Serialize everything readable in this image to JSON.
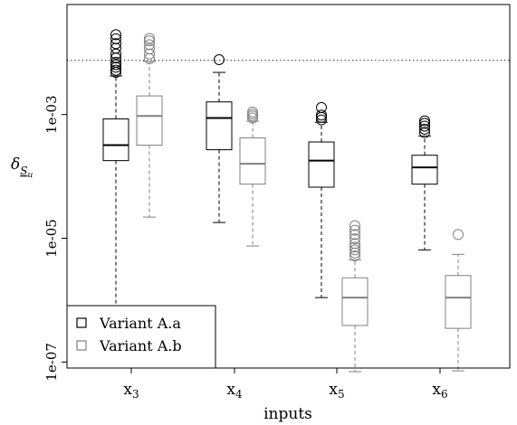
{
  "chart_data": {
    "type": "box",
    "xlabel": "inputs",
    "ylabel": {
      "base": "δ",
      "sub": "S",
      "subsub": "u"
    },
    "y_scale": "log10",
    "ylim": [
      8e-08,
      0.06
    ],
    "yticks": [
      {
        "value": 0.001,
        "label": "1e-03"
      },
      {
        "value": 1e-05,
        "label": "1e-05"
      },
      {
        "value": 1e-07,
        "label": "1e-07"
      }
    ],
    "reference_line": {
      "value": 0.0075,
      "style": "dotted"
    },
    "categories": [
      {
        "main": "x",
        "sub": "3"
      },
      {
        "main": "x",
        "sub": "4"
      },
      {
        "main": "x",
        "sub": "5"
      },
      {
        "main": "x",
        "sub": "6"
      }
    ],
    "legend": {
      "position": "bottom-left"
    },
    "series": [
      {
        "name": "Variant A.a",
        "color": "#000000",
        "boxes": [
          {
            "whisker_low": 4.5e-07,
            "q1": 0.00018,
            "median": 0.00032,
            "q3": 0.00085,
            "whisker_high": 0.0042,
            "outliers": [
              0.0048,
              0.0052,
              0.0058,
              0.0064,
              0.007,
              0.0082,
              0.0095,
              0.0118,
              0.014,
              0.0168,
              0.0195
            ]
          },
          {
            "whisker_low": 1.8e-05,
            "q1": 0.00027,
            "median": 0.00088,
            "q3": 0.0016,
            "whisker_high": 0.0048,
            "outliers": [
              0.0077
            ]
          },
          {
            "whisker_low": 1.1e-06,
            "q1": 6.7e-05,
            "median": 0.00018,
            "q3": 0.00036,
            "whisker_high": 0.00075,
            "outliers": [
              0.00082,
              0.0009,
              0.00098,
              0.0013
            ]
          },
          {
            "whisker_low": 6.5e-06,
            "q1": 7.5e-05,
            "median": 0.00014,
            "q3": 0.00022,
            "whisker_high": 0.00045,
            "outliers": [
              0.00051,
              0.00058,
              0.00065,
              0.00072,
              0.00079
            ]
          }
        ]
      },
      {
        "name": "Variant A.b",
        "color": "#808080",
        "boxes": [
          {
            "whisker_low": 2.2e-05,
            "q1": 0.00032,
            "median": 0.00095,
            "q3": 0.002,
            "whisker_high": 0.0072,
            "outliers": [
              0.008,
              0.0095,
              0.0115,
              0.0135,
              0.0155,
              0.017
            ]
          },
          {
            "whisker_low": 7.5e-06,
            "q1": 7.5e-05,
            "median": 0.00016,
            "q3": 0.00042,
            "whisker_high": 0.00078,
            "outliers": [
              0.00088,
              0.00095,
              0.00102,
              0.0011
            ]
          },
          {
            "whisker_low": 7e-08,
            "q1": 3.9e-07,
            "median": 1.1e-06,
            "q3": 2.3e-06,
            "whisker_high": 4.5e-06,
            "outliers": [
              5.2e-06,
              5.8e-06,
              6.5e-06,
              7.2e-06,
              8.2e-06,
              9.8e-06,
              1.15e-05,
              1.35e-05,
              1.6e-05
            ]
          },
          {
            "whisker_low": 7.2e-08,
            "q1": 3.5e-07,
            "median": 1.1e-06,
            "q3": 2.5e-06,
            "whisker_high": 5.5e-06,
            "outliers": [
              1.15e-05
            ]
          }
        ]
      }
    ]
  }
}
